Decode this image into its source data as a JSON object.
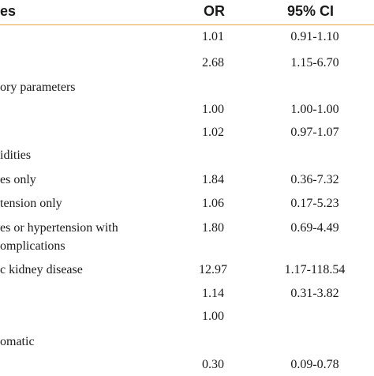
{
  "header": {
    "label_col": "es",
    "or_col": "OR",
    "ci_col": "95% CI"
  },
  "rows": [
    {
      "label": "",
      "or": "1.01",
      "ci": "0.91-1.10"
    },
    {
      "label": "",
      "or": "2.68",
      "ci": "1.15-6.70"
    },
    {
      "label": "ory parameters",
      "or": "",
      "ci": ""
    },
    {
      "label": "",
      "or": "1.00",
      "ci": "1.00-1.00"
    },
    {
      "label": "",
      "or": "1.02",
      "ci": "0.97-1.07"
    },
    {
      "label": "idities",
      "or": "",
      "ci": ""
    },
    {
      "label": "es only",
      "or": "1.84",
      "ci": "0.36-7.32"
    },
    {
      "label": "tension only",
      "or": "1.06",
      "ci": "0.17-5.23"
    },
    {
      "label": "es or hypertension with",
      "label2": "omplications",
      "or": "1.80",
      "ci": "0.69-4.49"
    },
    {
      "label": "c kidney disease",
      "or": "12.97",
      "ci": "1.17-118.54"
    },
    {
      "label": "",
      "or": "1.14",
      "ci": "0.31-3.82"
    },
    {
      "label": "",
      "or": "1.00",
      "ci": ""
    },
    {
      "label": "omatic",
      "or": "",
      "ci": ""
    },
    {
      "label": "",
      "or": "0.30",
      "ci": "0.09-0.78"
    }
  ]
}
